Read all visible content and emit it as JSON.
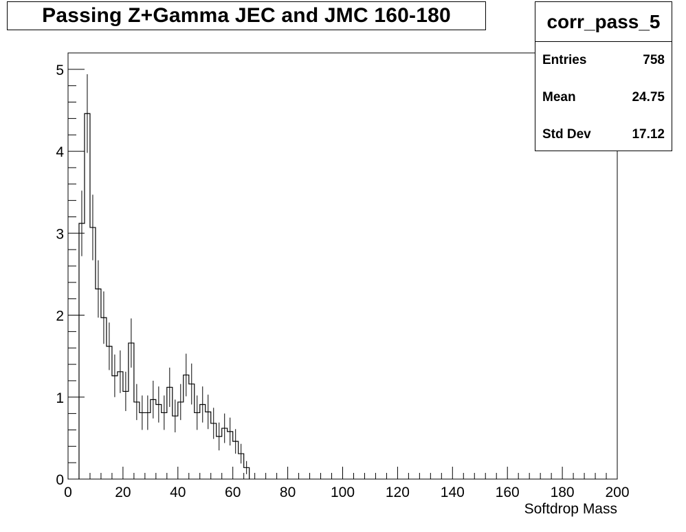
{
  "chart_data": {
    "type": "histogram",
    "title": "Passing Z+Gamma JEC and JMC 160-180",
    "xlabel": "Softdrop Mass",
    "ylabel": "",
    "xlim": [
      0,
      200
    ],
    "ylim": [
      0,
      5.2
    ],
    "bin_width": 2,
    "x_ticks": [
      0,
      20,
      40,
      60,
      80,
      100,
      120,
      140,
      160,
      180,
      200
    ],
    "y_ticks": [
      0,
      1,
      2,
      3,
      4,
      5
    ],
    "grid": false,
    "series": [
      {
        "bin_low_edges": [
          4,
          6,
          8,
          10,
          12,
          14,
          16,
          18,
          20,
          22,
          24,
          26,
          28,
          30,
          32,
          34,
          36,
          38,
          40,
          42,
          44,
          46,
          48,
          50,
          52,
          54,
          56,
          58,
          60,
          62,
          64
        ],
        "values": [
          3.12,
          4.46,
          3.07,
          2.32,
          1.97,
          1.62,
          1.26,
          1.31,
          1.07,
          1.66,
          0.94,
          0.81,
          0.81,
          0.97,
          0.91,
          0.81,
          1.12,
          0.77,
          0.94,
          1.27,
          1.16,
          0.81,
          0.91,
          0.82,
          0.68,
          0.52,
          0.62,
          0.58,
          0.46,
          0.31,
          0.14
        ],
        "errors": [
          0.4,
          0.48,
          0.4,
          0.35,
          0.32,
          0.29,
          0.26,
          0.26,
          0.24,
          0.3,
          0.22,
          0.21,
          0.21,
          0.23,
          0.22,
          0.21,
          0.24,
          0.2,
          0.22,
          0.26,
          0.25,
          0.21,
          0.22,
          0.21,
          0.19,
          0.17,
          0.18,
          0.17,
          0.15,
          0.12,
          0.08
        ]
      }
    ],
    "stats_box": {
      "name": "corr_pass_5",
      "entries_label": "Entries",
      "entries_value": "758",
      "mean_label": "Mean",
      "mean_value": "24.75",
      "stddev_label": "Std Dev",
      "stddev_value": "17.12",
      "placement": "top-right"
    }
  }
}
